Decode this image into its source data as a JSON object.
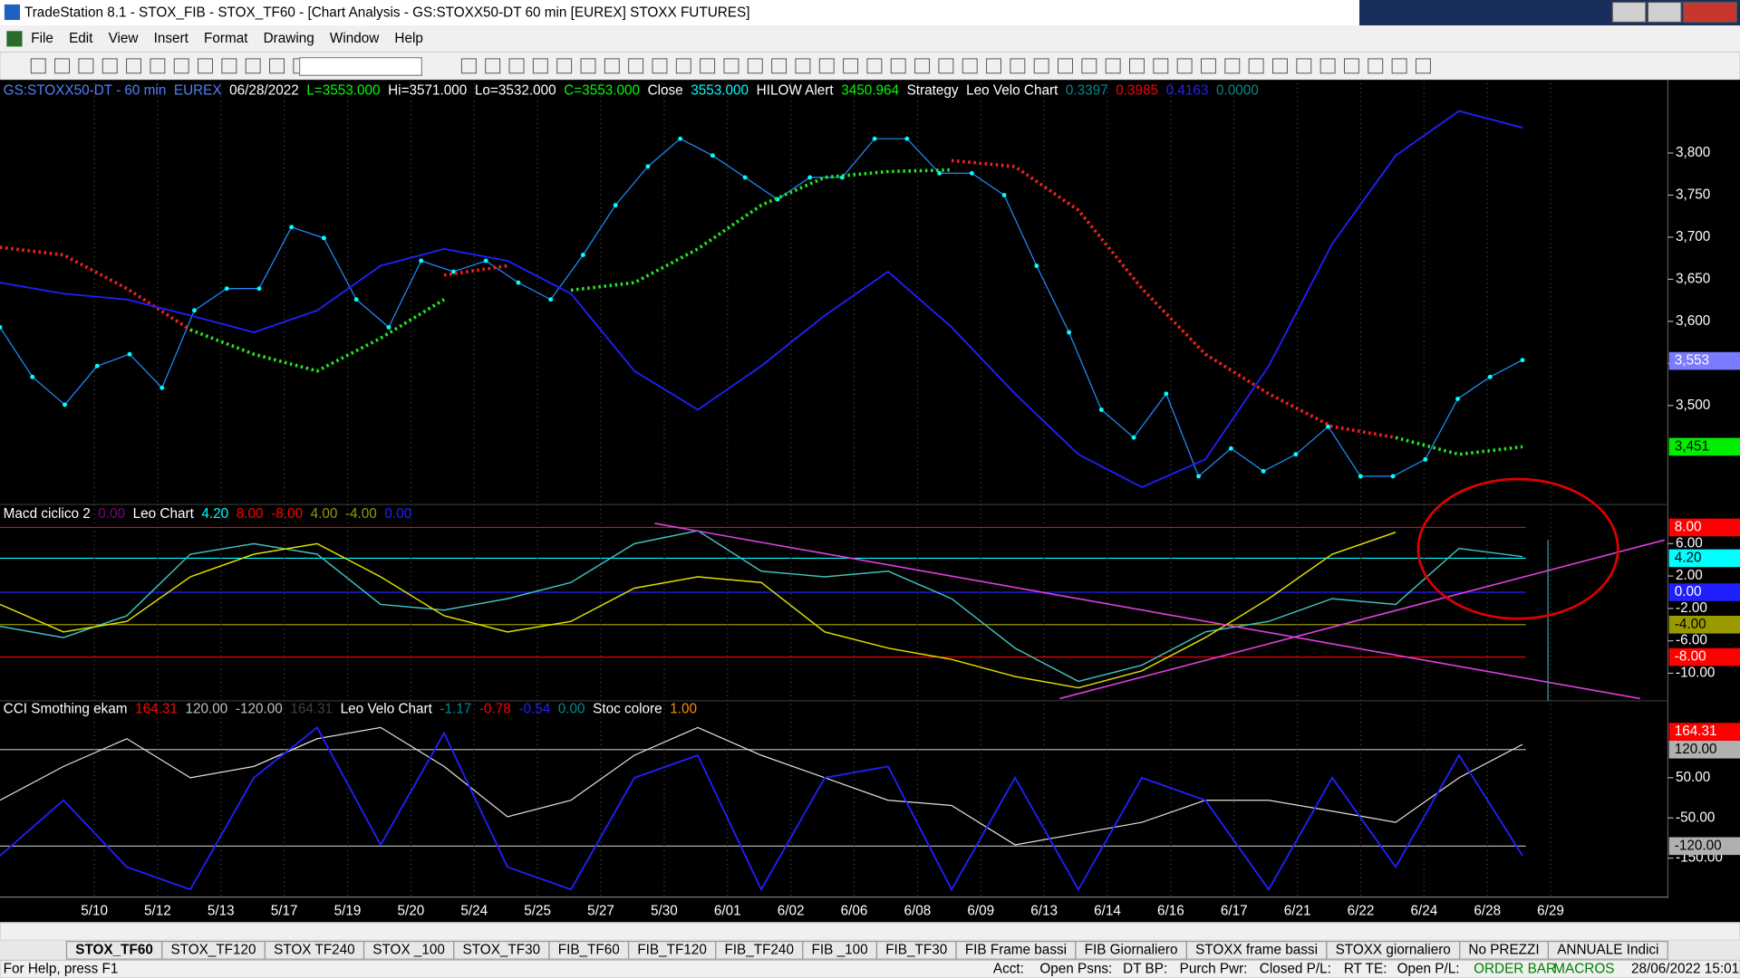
{
  "window": {
    "title": "TradeStation 8.1 - STOX_FIB - STOX_TF60 - [Chart Analysis - GS:STOXX50-DT  60 min  [EUREX] STOXX FUTURES]",
    "menu": [
      "File",
      "Edit",
      "View",
      "Insert",
      "Format",
      "Drawing",
      "Window",
      "Help"
    ]
  },
  "chart_data": [
    {
      "type": "line",
      "legend": [
        {
          "text": "GS:STOXX50-DT - 60 min",
          "color": "#4f81ff"
        },
        {
          "text": "EUREX",
          "color": "#4f81ff"
        },
        {
          "text": "06/28/2022",
          "color": "#ffffff"
        },
        {
          "text": "L=3553.000",
          "color": "#00ff00"
        },
        {
          "text": "Hi=3571.000",
          "color": "#ffffff"
        },
        {
          "text": "Lo=3532.000",
          "color": "#ffffff"
        },
        {
          "text": "C=3553.000",
          "color": "#00ff00"
        },
        {
          "text": "Close",
          "color": "#ffffff"
        },
        {
          "text": "3553.000",
          "color": "#00ffff"
        },
        {
          "text": "HILOW Alert",
          "color": "#ffffff"
        },
        {
          "text": "3450.964",
          "color": "#00ff00"
        },
        {
          "text": "Strategy",
          "color": "#ffffff"
        },
        {
          "text": "Leo Velo Chart",
          "color": "#ffffff"
        },
        {
          "text": "0.3397",
          "color": "#008b8b"
        },
        {
          "text": "0.3985",
          "color": "#ff0000"
        },
        {
          "text": "0.4163",
          "color": "#2020ff"
        },
        {
          "text": "0.0000",
          "color": "#008b8b"
        }
      ],
      "ylim": [
        3389,
        3883
      ],
      "yticks": [
        {
          "value": 3500,
          "label": "3,500"
        },
        {
          "value": 3550,
          "label": "3,550"
        },
        {
          "value": 3600,
          "label": "3,600"
        },
        {
          "value": 3650,
          "label": "3,650"
        },
        {
          "value": 3700,
          "label": "3,700"
        },
        {
          "value": 3750,
          "label": "3,750"
        },
        {
          "value": 3800,
          "label": "3,800"
        }
      ],
      "boxes": [
        {
          "value": 3553,
          "label": "3,553",
          "color": "#7b7bff",
          "level": false
        },
        {
          "value": 3451,
          "label": "3,451",
          "color": "#00ee00",
          "level": false
        }
      ],
      "series": [
        {
          "name": "Close",
          "color": "#1e90ff",
          "dots": "#00ffff",
          "values": [
            3593,
            3534,
            3501,
            3547,
            3561,
            3521,
            3613,
            3639,
            3639,
            3712,
            3699,
            3626,
            3593,
            3672,
            3659,
            3672,
            3646,
            3626,
            3679,
            3738,
            3784,
            3817,
            3797,
            3771,
            3745,
            3771,
            3771,
            3817,
            3817,
            3776,
            3776,
            3750,
            3666,
            3587,
            3495,
            3462,
            3514,
            3416,
            3449,
            3422,
            3442,
            3475,
            3416,
            3416,
            3436,
            3508,
            3534,
            3554
          ]
        },
        {
          "name": "HILOW Alert",
          "color": "#ff2020",
          "dash": "2 3",
          "width": 3,
          "values": [
            3688,
            3679,
            3639,
            3590,
            null,
            null,
            null,
            3655,
            3666,
            null,
            null,
            null,
            null,
            null,
            null,
            3791,
            3784,
            3732,
            3639,
            3561,
            3514,
            3475,
            3462,
            null,
            null
          ]
        },
        {
          "name": "HILOW Alert",
          "color": "#22ee22",
          "dash": "2 3",
          "width": 3,
          "values": [
            null,
            null,
            null,
            3590,
            3561,
            3541,
            3580,
            3626,
            null,
            3637,
            3646,
            3686,
            3738,
            3771,
            3778,
            3780,
            null,
            null,
            null,
            null,
            null,
            null,
            3462,
            3442,
            3451
          ]
        },
        {
          "name": "Leo Velo Chart",
          "color": "#2020ff",
          "width": 1.5,
          "values": [
            3646,
            3633,
            3626,
            3607,
            3587,
            3613,
            3666,
            3686,
            3672,
            3633,
            3541,
            3495,
            3547,
            3607,
            3659,
            3593,
            3514,
            3442,
            3403,
            3436,
            3547,
            3692,
            3797,
            3850,
            3830
          ]
        }
      ]
    },
    {
      "type": "line",
      "legend": [
        {
          "text": "Macd ciclico 2",
          "color": "#ffffff"
        },
        {
          "text": "0.00",
          "color": "#800080"
        },
        {
          "text": "Leo Chart",
          "color": "#ffffff"
        },
        {
          "text": "4.20",
          "color": "#00ffff"
        },
        {
          "text": "8.00",
          "color": "#ff0000"
        },
        {
          "text": "-8.00",
          "color": "#ff0000"
        },
        {
          "text": "4.00",
          "color": "#999900"
        },
        {
          "text": "-4.00",
          "color": "#999900"
        },
        {
          "text": "0.00",
          "color": "#2020ff"
        }
      ],
      "ylim": [
        -13.4,
        8.5
      ],
      "yticks": [
        {
          "value": 6,
          "label": "6.00"
        },
        {
          "value": 2,
          "label": "2.00"
        },
        {
          "value": -2,
          "label": "-2.00"
        },
        {
          "value": -6,
          "label": "-6.00"
        },
        {
          "value": -10,
          "label": "-10.00"
        }
      ],
      "boxes": [
        {
          "value": 8,
          "label": "8.00",
          "color": "#ff0000",
          "level": true
        },
        {
          "value": 4.2,
          "label": "4.20",
          "color": "#00ffff",
          "level": true
        },
        {
          "value": 0,
          "label": "0.00",
          "color": "#2020ff",
          "level": true
        },
        {
          "value": -4,
          "label": "-4.00",
          "color": "#999900",
          "level": true
        },
        {
          "value": -8,
          "label": "-8.00",
          "color": "#ff0000",
          "level": true
        }
      ],
      "series": [
        {
          "name": "Macd ciclico 2",
          "color": "#40c0c0",
          "width": 1.2,
          "values": [
            -4.2,
            -5.6,
            -2.9,
            4.7,
            6,
            4.7,
            -1.5,
            -2.2,
            -0.8,
            1.2,
            6,
            7.6,
            2.6,
            1.9,
            2.6,
            -0.8,
            -6.9,
            -11,
            -9,
            -4.9,
            -3.6,
            -0.8,
            -1.5,
            5.4,
            4.4
          ]
        },
        {
          "name": "Leo Chart",
          "color": "#e0e000",
          "width": 1.2,
          "values": [
            -1.5,
            -4.9,
            -3.6,
            1.9,
            4.7,
            6,
            1.9,
            -2.9,
            -4.9,
            -3.6,
            0.5,
            1.9,
            1.2,
            -4.9,
            -6.9,
            -8.3,
            -10.4,
            -11.8,
            -9.7,
            -5.6,
            -0.8,
            4.7,
            7.4,
            null,
            null
          ]
        }
      ]
    },
    {
      "type": "line",
      "legend": [
        {
          "text": "CCI Smothing ekam",
          "color": "#ffffff"
        },
        {
          "text": "164.31",
          "color": "#ff0000"
        },
        {
          "text": "120.00",
          "color": "#c0c0c0"
        },
        {
          "text": "-120.00",
          "color": "#c0c0c0"
        },
        {
          "text": "164.31",
          "color": "#404040"
        },
        {
          "text": "Leo Velo Chart",
          "color": "#ffffff"
        },
        {
          "text": "-1.17",
          "color": "#008b8b"
        },
        {
          "text": "-0.78",
          "color": "#ff0000"
        },
        {
          "text": "-0.54",
          "color": "#2020ff"
        },
        {
          "text": "0.00",
          "color": "#008b8b"
        },
        {
          "text": "Stoc colore",
          "color": "#ffffff"
        },
        {
          "text": "1.00",
          "color": "#ff8c00"
        }
      ],
      "ylim": [
        -244,
        205.5
      ],
      "yticks": [
        {
          "value": 50,
          "label": "50.00"
        },
        {
          "value": -50,
          "label": "-50.00"
        },
        {
          "value": -150,
          "label": "-150.00"
        }
      ],
      "boxes": [
        {
          "value": 164.31,
          "label": "164.31",
          "color": "#ff0000",
          "level": false
        },
        {
          "value": 120,
          "label": "120.00",
          "color": "#b0b0b0",
          "level": true
        },
        {
          "value": -120,
          "label": "-120.00",
          "color": "#b0b0b0",
          "level": true
        }
      ],
      "series": [
        {
          "name": "CCI Smothing ekam",
          "color": "#e0e0e0",
          "width": 1,
          "values": [
            -6,
            78,
            147,
            50,
            78,
            147,
            175,
            78,
            -47,
            -6,
            106,
            175,
            106,
            50,
            -6,
            -19,
            -117,
            -89,
            -61,
            -6,
            -6,
            -33,
            -61,
            50,
            133
          ]
        },
        {
          "name": "Leo Velo Chart",
          "color": "#2020ff",
          "width": 1.5,
          "values": [
            -144,
            -6,
            -172,
            -228,
            50,
            175,
            -117,
            161,
            -172,
            -228,
            50,
            106,
            -228,
            50,
            78,
            -228,
            50,
            -228,
            50,
            -6,
            -228,
            50,
            -172,
            106,
            -144
          ]
        }
      ]
    }
  ],
  "time_axis": {
    "categories": [
      "5/10",
      "5/12",
      "5/13",
      "5/17",
      "5/19",
      "5/20",
      "5/24",
      "5/25",
      "5/27",
      "5/30",
      "6/01",
      "6/02",
      "6/06",
      "6/08",
      "6/09",
      "6/13",
      "6/14",
      "6/16",
      "6/17",
      "6/21",
      "6/22",
      "6/24",
      "6/28",
      "6/29"
    ]
  },
  "tabs": [
    "STOX_TF60",
    "STOX_TF120",
    "STOX TF240",
    "STOX _100",
    "STOX_TF30",
    "FIB_TF60",
    "FIB_TF120",
    "FIB_TF240",
    "FIB _100",
    "FIB_TF30",
    "FIB Frame bassi",
    "FIB Giornaliero",
    "STOXX frame bassi",
    "STOXX giornaliero",
    "No PREZZI",
    "ANNUALE Indici"
  ],
  "status": [
    {
      "text": "For Help, press F1",
      "color": "#000000"
    },
    {
      "text": "Acct:",
      "color": "#000000"
    },
    {
      "text": "Open Psns:",
      "color": "#000000"
    },
    {
      "text": "DT BP:",
      "color": "#000000"
    },
    {
      "text": "Purch Pwr:",
      "color": "#000000"
    },
    {
      "text": "Closed P/L:",
      "color": "#000000"
    },
    {
      "text": "RT TE:",
      "color": "#000000"
    },
    {
      "text": "Open P/L:",
      "color": "#000000"
    },
    {
      "text": "ORDER BAR",
      "color": "#008000"
    },
    {
      "text": "MACROS",
      "color": "#008000"
    },
    {
      "text": "28/06/2022 15:01",
      "color": "#000000"
    }
  ]
}
